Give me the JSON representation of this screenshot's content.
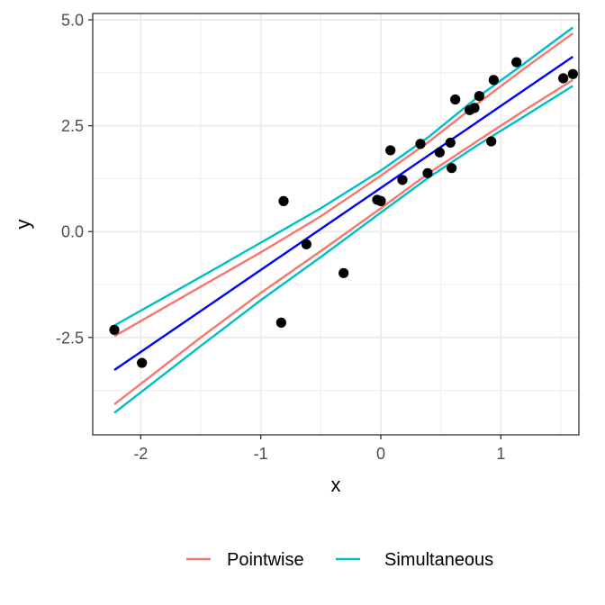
{
  "chart_data": {
    "type": "scatter",
    "title": "",
    "xlabel": "x",
    "ylabel": "y",
    "xlim": [
      -2.4,
      1.65
    ],
    "ylim": [
      -4.8,
      5.15
    ],
    "x_ticks": [
      -2,
      -1,
      0,
      1
    ],
    "x_tick_labels": [
      "-2",
      "-1",
      "0",
      "1"
    ],
    "y_ticks": [
      -2.5,
      0.0,
      2.5,
      5.0
    ],
    "y_tick_labels": [
      "-2.5",
      "0.0",
      "2.5",
      "5.0"
    ],
    "grid": true,
    "legend_position": "bottom",
    "points": {
      "x": [
        -2.22,
        -1.99,
        -0.83,
        -0.81,
        -0.62,
        -0.31,
        -0.03,
        0.0,
        0.08,
        0.18,
        0.33,
        0.39,
        0.49,
        0.58,
        0.59,
        0.62,
        0.74,
        0.78,
        0.82,
        0.92,
        0.94,
        1.13,
        1.52,
        1.6
      ],
      "y": [
        -2.32,
        -3.1,
        -2.15,
        0.72,
        -0.3,
        -0.98,
        0.75,
        0.72,
        1.92,
        1.22,
        2.07,
        1.38,
        1.87,
        2.1,
        1.5,
        3.12,
        2.87,
        2.92,
        3.2,
        2.13,
        3.58,
        4.0,
        3.62,
        3.72
      ],
      "color": "#000000"
    },
    "fit_line": {
      "x": [
        -2.22,
        1.6
      ],
      "y": [
        -3.27,
        4.13
      ],
      "color": "#0000ff"
    },
    "series": [
      {
        "name": "Pointwise",
        "color": "#f8766d",
        "upper": {
          "x": [
            -2.22,
            -1.5,
            -1.0,
            -0.5,
            0.0,
            0.4,
            0.8,
            1.2,
            1.6
          ],
          "y": [
            -2.47,
            -1.3,
            -0.49,
            0.36,
            1.32,
            2.12,
            3.01,
            3.86,
            4.68
          ]
        },
        "lower": {
          "x": [
            -2.22,
            -1.5,
            -1.0,
            -0.5,
            0.0,
            0.4,
            0.8,
            1.2,
            1.6
          ],
          "y": [
            -4.08,
            -2.5,
            -1.45,
            -0.46,
            0.55,
            1.38,
            2.13,
            2.87,
            3.58
          ]
        }
      },
      {
        "name": "Simultaneous",
        "color": "#00bfc4",
        "upper": {
          "x": [
            -2.22,
            -1.5,
            -1.0,
            -0.5,
            0.0,
            0.4,
            0.8,
            1.2,
            1.6
          ],
          "y": [
            -2.22,
            -1.07,
            -0.26,
            0.55,
            1.44,
            2.24,
            3.16,
            3.98,
            4.82
          ]
        },
        "lower": {
          "x": [
            -2.22,
            -1.5,
            -1.0,
            -0.5,
            0.0,
            0.4,
            0.8,
            1.2,
            1.6
          ],
          "y": [
            -4.28,
            -2.7,
            -1.62,
            -0.6,
            0.45,
            1.28,
            2.03,
            2.73,
            3.44
          ]
        }
      }
    ]
  }
}
